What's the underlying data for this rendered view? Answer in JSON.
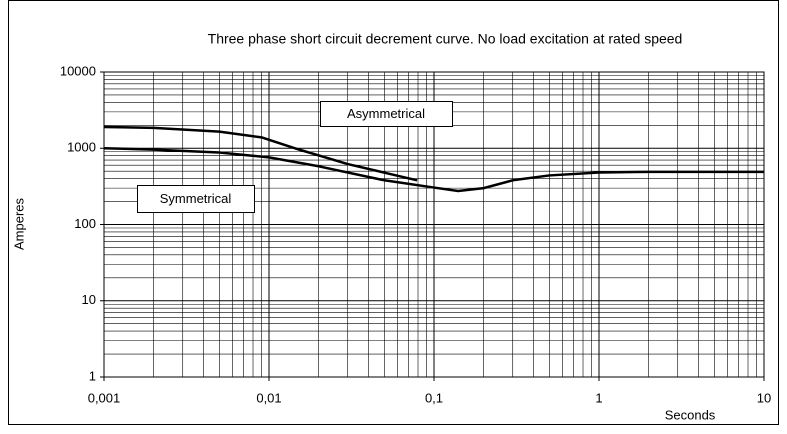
{
  "chart_data": {
    "type": "line",
    "title": "Three phase short circuit decrement curve. No load excitation at rated speed",
    "xlabel": "Seconds",
    "ylabel": "Amperes",
    "xscale": "log",
    "yscale": "log",
    "grid": true,
    "xlim": [
      0.001,
      10
    ],
    "ylim": [
      1,
      10000
    ],
    "xticks": [
      {
        "value": 0.001,
        "label": "0,001"
      },
      {
        "value": 0.01,
        "label": "0,01"
      },
      {
        "value": 0.1,
        "label": "0,1"
      },
      1,
      10
    ],
    "yticks": [
      1,
      10,
      100,
      1000,
      10000
    ],
    "series": [
      {
        "name": "Symmetrical",
        "color": "#000000",
        "x": [
          0.001,
          0.002,
          0.005,
          0.01,
          0.02,
          0.05,
          0.1,
          0.14,
          0.2,
          0.3,
          0.5,
          1,
          2,
          10
        ],
        "values": [
          1000,
          960,
          880,
          760,
          580,
          380,
          305,
          275,
          300,
          380,
          440,
          480,
          490,
          490
        ]
      },
      {
        "name": "Asymmetrical",
        "color": "#000000",
        "x": [
          0.001,
          0.002,
          0.005,
          0.009,
          0.015,
          0.03,
          0.079
        ],
        "values": [
          1900,
          1850,
          1650,
          1390,
          970,
          620,
          380
        ]
      }
    ]
  }
}
